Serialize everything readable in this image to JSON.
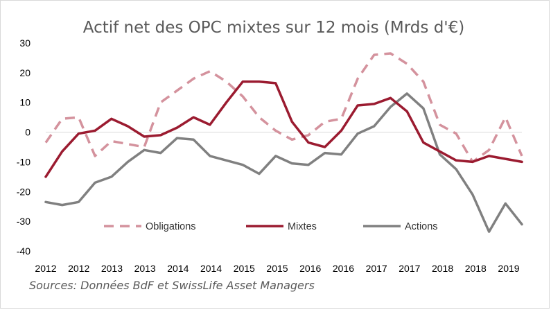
{
  "chart_data": {
    "type": "line",
    "title": "Actif net des OPC mixtes sur 12 mois (Mrds d'€)",
    "xlabel": "",
    "ylabel": "",
    "ylim": [
      -40,
      30
    ],
    "yticks": [
      30,
      20,
      10,
      0,
      -10,
      -20,
      -30,
      -40
    ],
    "xtick_labels": [
      "2012",
      "2012",
      "2013",
      "2013",
      "2014",
      "2014",
      "2015",
      "2015",
      "2016",
      "2016",
      "2017",
      "2017",
      "2018",
      "2018",
      "2019"
    ],
    "grid": "zero line only",
    "legend_position": "bottom-inside",
    "series": [
      {
        "name": "Obligations",
        "color": "#d4929d",
        "style": "dashed",
        "values": [
          -3.5,
          4.5,
          5,
          -8,
          -3,
          -4,
          -5,
          10,
          14,
          18,
          20.5,
          17,
          12,
          5,
          0.5,
          -2.5,
          -1,
          3.5,
          4.5,
          18,
          26,
          26.5,
          23,
          17,
          2.5,
          -0.5,
          -10,
          -6,
          5,
          -8
        ]
      },
      {
        "name": "Mixtes",
        "color": "#9b1b30",
        "style": "solid",
        "values": [
          -15,
          -6.5,
          -0.5,
          0.5,
          4.5,
          2,
          -1.5,
          -1,
          1.5,
          5,
          2.5,
          10,
          17,
          17,
          16.5,
          3.5,
          -3.5,
          -5,
          0.5,
          9,
          9.5,
          11.5,
          7,
          -3.5,
          -6.5,
          -9.5,
          -10,
          -8,
          -9,
          -10
        ]
      },
      {
        "name": "Actions",
        "color": "#808080",
        "style": "solid",
        "values": [
          -23.5,
          -24.5,
          -23.5,
          -17,
          -15,
          -10,
          -6,
          -7,
          -2,
          -2.5,
          -8,
          -9.5,
          -11,
          -14,
          -8,
          -10.5,
          -11,
          -7,
          -7.5,
          -0.5,
          2,
          8.5,
          13,
          8,
          -7.5,
          -12.5,
          -21,
          -33.5,
          -24,
          -31
        ]
      }
    ]
  },
  "source": "Sources: Données BdF et SwissLife Asset Managers"
}
